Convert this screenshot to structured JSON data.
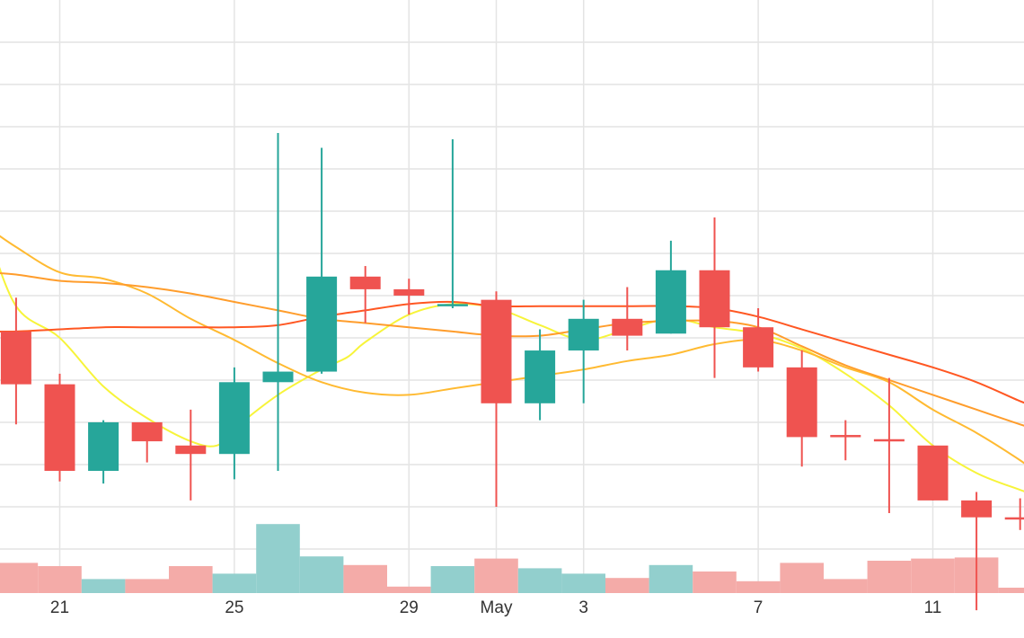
{
  "chart_data": {
    "type": "candlestick",
    "x_tick_labels": [
      {
        "day": 21,
        "label": "21"
      },
      {
        "day": 25,
        "label": "25"
      },
      {
        "day": 29,
        "label": "29"
      },
      {
        "day": 31,
        "label": "May"
      },
      {
        "day": 33,
        "label": "3"
      },
      {
        "day": 37,
        "label": "7"
      },
      {
        "day": 41,
        "label": "11"
      }
    ],
    "grid": true,
    "colors": {
      "up": "#26a69a",
      "down": "#ef5350",
      "volume_up": "#92cfcd",
      "volume_down": "#f4aba8",
      "ma_yellow": "#f7f43a",
      "ma_orange_light": "#ffba31",
      "ma_orange": "#ff9d2c",
      "ma_red": "#ff5722",
      "grid": "#e4e4e4"
    },
    "candles": [
      {
        "day": 20,
        "open": 66.8,
        "high": 68.4,
        "low": 62.4,
        "close": 64.3
      },
      {
        "day": 21,
        "open": 64.3,
        "high": 64.8,
        "low": 59.7,
        "close": 60.2
      },
      {
        "day": 22,
        "open": 60.2,
        "high": 62.6,
        "low": 59.6,
        "close": 62.5
      },
      {
        "day": 23,
        "open": 62.5,
        "high": 62.5,
        "low": 60.6,
        "close": 61.6
      },
      {
        "day": 24,
        "open": 61.4,
        "high": 63.1,
        "low": 58.8,
        "close": 61.0
      },
      {
        "day": 25,
        "open": 61.0,
        "high": 65.1,
        "low": 59.8,
        "close": 64.4
      },
      {
        "day": 26,
        "open": 64.4,
        "high": 76.2,
        "low": 60.2,
        "close": 64.9
      },
      {
        "day": 27,
        "open": 64.9,
        "high": 75.5,
        "low": 64.8,
        "close": 69.4
      },
      {
        "day": 28,
        "open": 69.4,
        "high": 69.9,
        "low": 67.2,
        "close": 68.8
      },
      {
        "day": 29,
        "open": 68.8,
        "high": 69.3,
        "low": 67.6,
        "close": 68.5
      },
      {
        "day": 30,
        "open": 68.0,
        "high": 75.9,
        "low": 67.9,
        "close": 68.1
      },
      {
        "day": 31,
        "open": 68.3,
        "high": 68.7,
        "low": 58.5,
        "close": 63.4
      },
      {
        "day": 32,
        "open": 63.4,
        "high": 66.9,
        "low": 62.6,
        "close": 65.9
      },
      {
        "day": 33,
        "open": 65.9,
        "high": 68.3,
        "low": 63.4,
        "close": 67.4
      },
      {
        "day": 34,
        "open": 67.4,
        "high": 68.9,
        "low": 65.9,
        "close": 66.6
      },
      {
        "day": 35,
        "open": 66.7,
        "high": 71.1,
        "low": 66.7,
        "close": 69.7
      },
      {
        "day": 36,
        "open": 69.7,
        "high": 72.2,
        "low": 64.6,
        "close": 67.0
      },
      {
        "day": 37,
        "open": 67.0,
        "high": 67.9,
        "low": 64.9,
        "close": 65.1
      },
      {
        "day": 38,
        "open": 65.1,
        "high": 65.9,
        "low": 60.4,
        "close": 61.8
      },
      {
        "day": 39,
        "open": 61.9,
        "high": 62.6,
        "low": 60.7,
        "close": 61.8
      },
      {
        "day": 40,
        "open": 61.7,
        "high": 64.6,
        "low": 58.2,
        "close": 61.6
      },
      {
        "day": 41,
        "open": 61.4,
        "high": 61.4,
        "low": 58.8,
        "close": 58.8
      },
      {
        "day": 42,
        "open": 58.8,
        "high": 59.2,
        "low": 53.6,
        "close": 58.0
      },
      {
        "day": 43,
        "open": 58.0,
        "high": 58.9,
        "low": 57.4,
        "close": 57.9
      }
    ],
    "volume": [
      {
        "day": 20,
        "value": 1.4,
        "direction": "down"
      },
      {
        "day": 21,
        "value": 1.25,
        "direction": "down"
      },
      {
        "day": 22,
        "value": 0.65,
        "direction": "up"
      },
      {
        "day": 23,
        "value": 0.65,
        "direction": "down"
      },
      {
        "day": 24,
        "value": 1.25,
        "direction": "down"
      },
      {
        "day": 25,
        "value": 0.9,
        "direction": "up"
      },
      {
        "day": 26,
        "value": 3.2,
        "direction": "up"
      },
      {
        "day": 27,
        "value": 1.7,
        "direction": "up"
      },
      {
        "day": 28,
        "value": 1.3,
        "direction": "down"
      },
      {
        "day": 29,
        "value": 0.3,
        "direction": "down"
      },
      {
        "day": 30,
        "value": 1.25,
        "direction": "up"
      },
      {
        "day": 31,
        "value": 1.6,
        "direction": "down"
      },
      {
        "day": 32,
        "value": 1.15,
        "direction": "up"
      },
      {
        "day": 33,
        "value": 0.9,
        "direction": "up"
      },
      {
        "day": 34,
        "value": 0.7,
        "direction": "down"
      },
      {
        "day": 35,
        "value": 1.3,
        "direction": "up"
      },
      {
        "day": 36,
        "value": 1.0,
        "direction": "down"
      },
      {
        "day": 37,
        "value": 0.55,
        "direction": "down"
      },
      {
        "day": 38,
        "value": 1.4,
        "direction": "down"
      },
      {
        "day": 39,
        "value": 0.65,
        "direction": "down"
      },
      {
        "day": 40,
        "value": 1.5,
        "direction": "down"
      },
      {
        "day": 41,
        "value": 1.6,
        "direction": "down"
      },
      {
        "day": 42,
        "value": 1.65,
        "direction": "down"
      },
      {
        "day": 43,
        "value": 0.25,
        "direction": "down"
      }
    ],
    "moving_averages": [
      {
        "color": "#f7f43a",
        "values": [
          [
            19.3,
            71.8
          ],
          [
            20,
            68.0
          ],
          [
            21,
            66.5
          ],
          [
            22,
            64.2
          ],
          [
            23,
            62.7
          ],
          [
            24,
            61.6
          ],
          [
            24.6,
            61.4
          ],
          [
            25,
            62.2
          ],
          [
            26,
            63.8
          ],
          [
            27,
            65.0
          ],
          [
            27.6,
            65.6
          ],
          [
            28,
            66.3
          ],
          [
            29,
            67.6
          ],
          [
            30,
            68.1
          ],
          [
            31,
            67.9
          ],
          [
            32,
            67.1
          ],
          [
            33,
            66.4
          ],
          [
            34,
            66.9
          ],
          [
            35,
            67.4
          ],
          [
            36,
            67.0
          ],
          [
            37,
            66.7
          ],
          [
            38,
            66.0
          ],
          [
            39,
            64.8
          ],
          [
            40,
            63.3
          ],
          [
            41,
            61.4
          ],
          [
            42,
            60.1
          ],
          [
            43,
            59.3
          ],
          [
            43.3,
            59.1
          ]
        ]
      },
      {
        "color": "#ffba31",
        "values": [
          [
            19.3,
            71.8
          ],
          [
            20,
            70.8
          ],
          [
            21,
            69.6
          ],
          [
            22,
            69.3
          ],
          [
            23,
            68.6
          ],
          [
            24,
            67.4
          ],
          [
            25,
            66.4
          ],
          [
            26,
            65.3
          ],
          [
            27,
            64.4
          ],
          [
            28,
            63.9
          ],
          [
            29,
            63.8
          ],
          [
            30,
            64.1
          ],
          [
            31,
            64.4
          ],
          [
            32,
            64.7
          ],
          [
            33,
            65.0
          ],
          [
            34,
            65.4
          ],
          [
            35,
            65.7
          ],
          [
            36,
            66.2
          ],
          [
            37,
            66.4
          ],
          [
            38,
            65.9
          ],
          [
            39,
            65.1
          ],
          [
            40,
            64.4
          ],
          [
            41,
            63.1
          ],
          [
            42,
            62.0
          ],
          [
            43,
            60.7
          ],
          [
            43.3,
            60.2
          ]
        ]
      },
      {
        "color": "#ff9d2c",
        "values": [
          [
            19.3,
            69.6
          ],
          [
            20,
            69.5
          ],
          [
            21,
            69.2
          ],
          [
            22,
            69.1
          ],
          [
            23,
            68.9
          ],
          [
            24,
            68.6
          ],
          [
            25,
            68.2
          ],
          [
            26,
            67.8
          ],
          [
            27,
            67.4
          ],
          [
            28,
            67.2
          ],
          [
            29,
            67.0
          ],
          [
            30,
            66.8
          ],
          [
            31,
            66.6
          ],
          [
            32,
            66.6
          ],
          [
            33,
            66.9
          ],
          [
            34,
            67.2
          ],
          [
            35,
            67.3
          ],
          [
            36,
            67.3
          ],
          [
            37,
            67.0
          ],
          [
            38,
            66.1
          ],
          [
            39,
            65.2
          ],
          [
            40,
            64.5
          ],
          [
            41,
            63.8
          ],
          [
            42,
            63.1
          ],
          [
            43,
            62.4
          ],
          [
            43.3,
            62.2
          ]
        ]
      },
      {
        "color": "#ff5722",
        "values": [
          [
            19.3,
            66.8
          ],
          [
            20,
            66.8
          ],
          [
            21,
            66.9
          ],
          [
            22,
            67.0
          ],
          [
            23,
            67.0
          ],
          [
            24,
            67.0
          ],
          [
            25,
            67.0
          ],
          [
            26,
            67.1
          ],
          [
            27,
            67.5
          ],
          [
            28,
            67.8
          ],
          [
            29,
            68.1
          ],
          [
            30,
            68.2
          ],
          [
            31,
            68.0
          ],
          [
            32,
            68.0
          ],
          [
            33,
            68.0
          ],
          [
            34,
            68.0
          ],
          [
            35,
            68.0
          ],
          [
            36,
            67.9
          ],
          [
            37,
            67.5
          ],
          [
            38,
            66.9
          ],
          [
            39,
            66.3
          ],
          [
            40,
            65.7
          ],
          [
            41,
            65.1
          ],
          [
            42,
            64.4
          ],
          [
            43,
            63.5
          ],
          [
            43.3,
            63.3
          ]
        ]
      }
    ]
  }
}
